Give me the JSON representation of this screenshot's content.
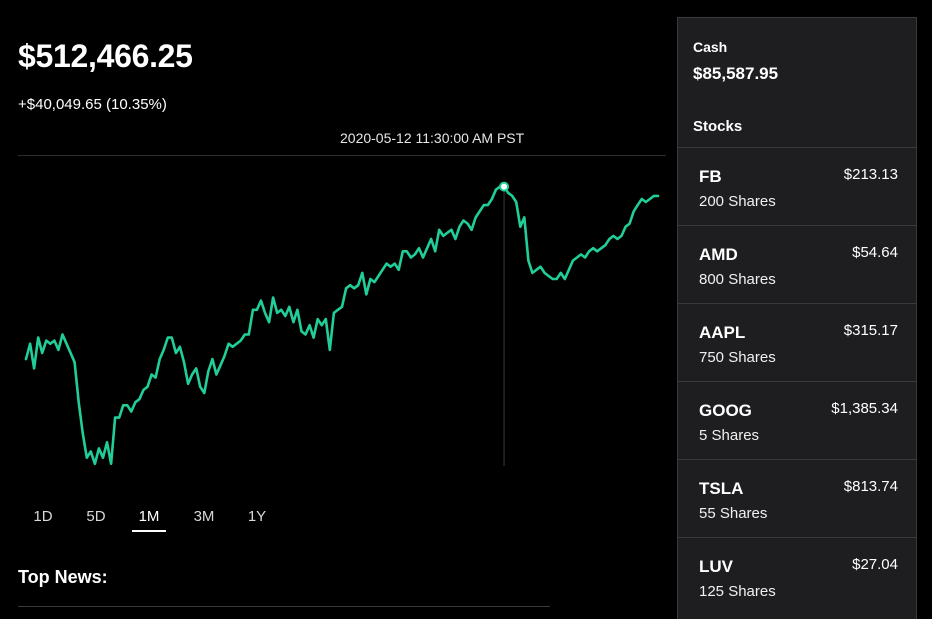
{
  "portfolio": {
    "value": "$512,466.25",
    "change": "+$40,049.65 (10.35%)"
  },
  "chart": {
    "timestamp": "2020-05-12 11:30:00 AM PST",
    "line_color": "#21ce99",
    "hover_index": 118
  },
  "chart_data": {
    "type": "line",
    "title": "",
    "xlabel": "",
    "ylabel": "",
    "grid": false,
    "ylim": [
      0,
      100
    ],
    "series": [
      {
        "values": [
          36,
          41,
          33,
          43,
          38,
          42,
          41,
          42,
          39,
          44,
          41,
          38,
          35,
          22,
          12,
          4,
          6,
          2,
          7,
          4,
          9,
          2,
          17,
          17,
          21,
          21,
          19,
          22,
          23,
          26,
          27,
          31,
          30,
          36,
          39,
          43,
          43,
          38,
          40,
          35,
          28,
          31,
          33,
          27,
          25,
          32,
          36,
          31,
          34,
          37,
          41,
          40,
          41,
          42,
          44,
          44,
          52,
          52,
          55,
          51,
          48,
          56,
          51,
          52,
          50,
          53,
          48,
          52,
          45,
          44,
          47,
          43,
          49,
          47,
          49,
          39,
          51,
          52,
          53,
          59,
          60,
          59,
          60,
          64,
          57,
          62,
          61,
          63,
          65,
          67,
          66,
          67,
          65,
          71,
          71,
          69,
          70,
          72,
          69,
          72,
          75,
          71,
          78,
          76,
          77,
          78,
          75,
          79,
          81,
          80,
          78,
          82,
          84,
          86,
          86,
          88,
          91,
          92,
          92,
          90,
          89,
          87,
          79,
          82,
          68,
          64,
          65,
          66,
          64,
          63,
          62,
          62,
          64,
          62,
          65,
          68,
          69,
          70,
          69,
          71,
          72,
          71,
          72,
          73,
          75,
          76,
          75,
          76,
          79,
          80,
          84,
          86,
          88,
          87,
          88,
          89,
          89
        ]
      }
    ]
  },
  "ranges": [
    {
      "label": "1D",
      "active": false
    },
    {
      "label": "5D",
      "active": false
    },
    {
      "label": "1M",
      "active": true
    },
    {
      "label": "3M",
      "active": false
    },
    {
      "label": "1Y",
      "active": false
    }
  ],
  "news": {
    "title": "Top News:"
  },
  "sidebar": {
    "cash_label": "Cash",
    "cash_value": "$85,587.95",
    "stocks_heading": "Stocks",
    "stocks": [
      {
        "symbol": "FB",
        "shares": "200 Shares",
        "price": "$213.13"
      },
      {
        "symbol": "AMD",
        "shares": "800 Shares",
        "price": "$54.64"
      },
      {
        "symbol": "AAPL",
        "shares": "750 Shares",
        "price": "$315.17"
      },
      {
        "symbol": "GOOG",
        "shares": "5 Shares",
        "price": "$1,385.34"
      },
      {
        "symbol": "TSLA",
        "shares": "55 Shares",
        "price": "$813.74"
      },
      {
        "symbol": "LUV",
        "shares": "125 Shares",
        "price": "$27.04"
      }
    ]
  }
}
